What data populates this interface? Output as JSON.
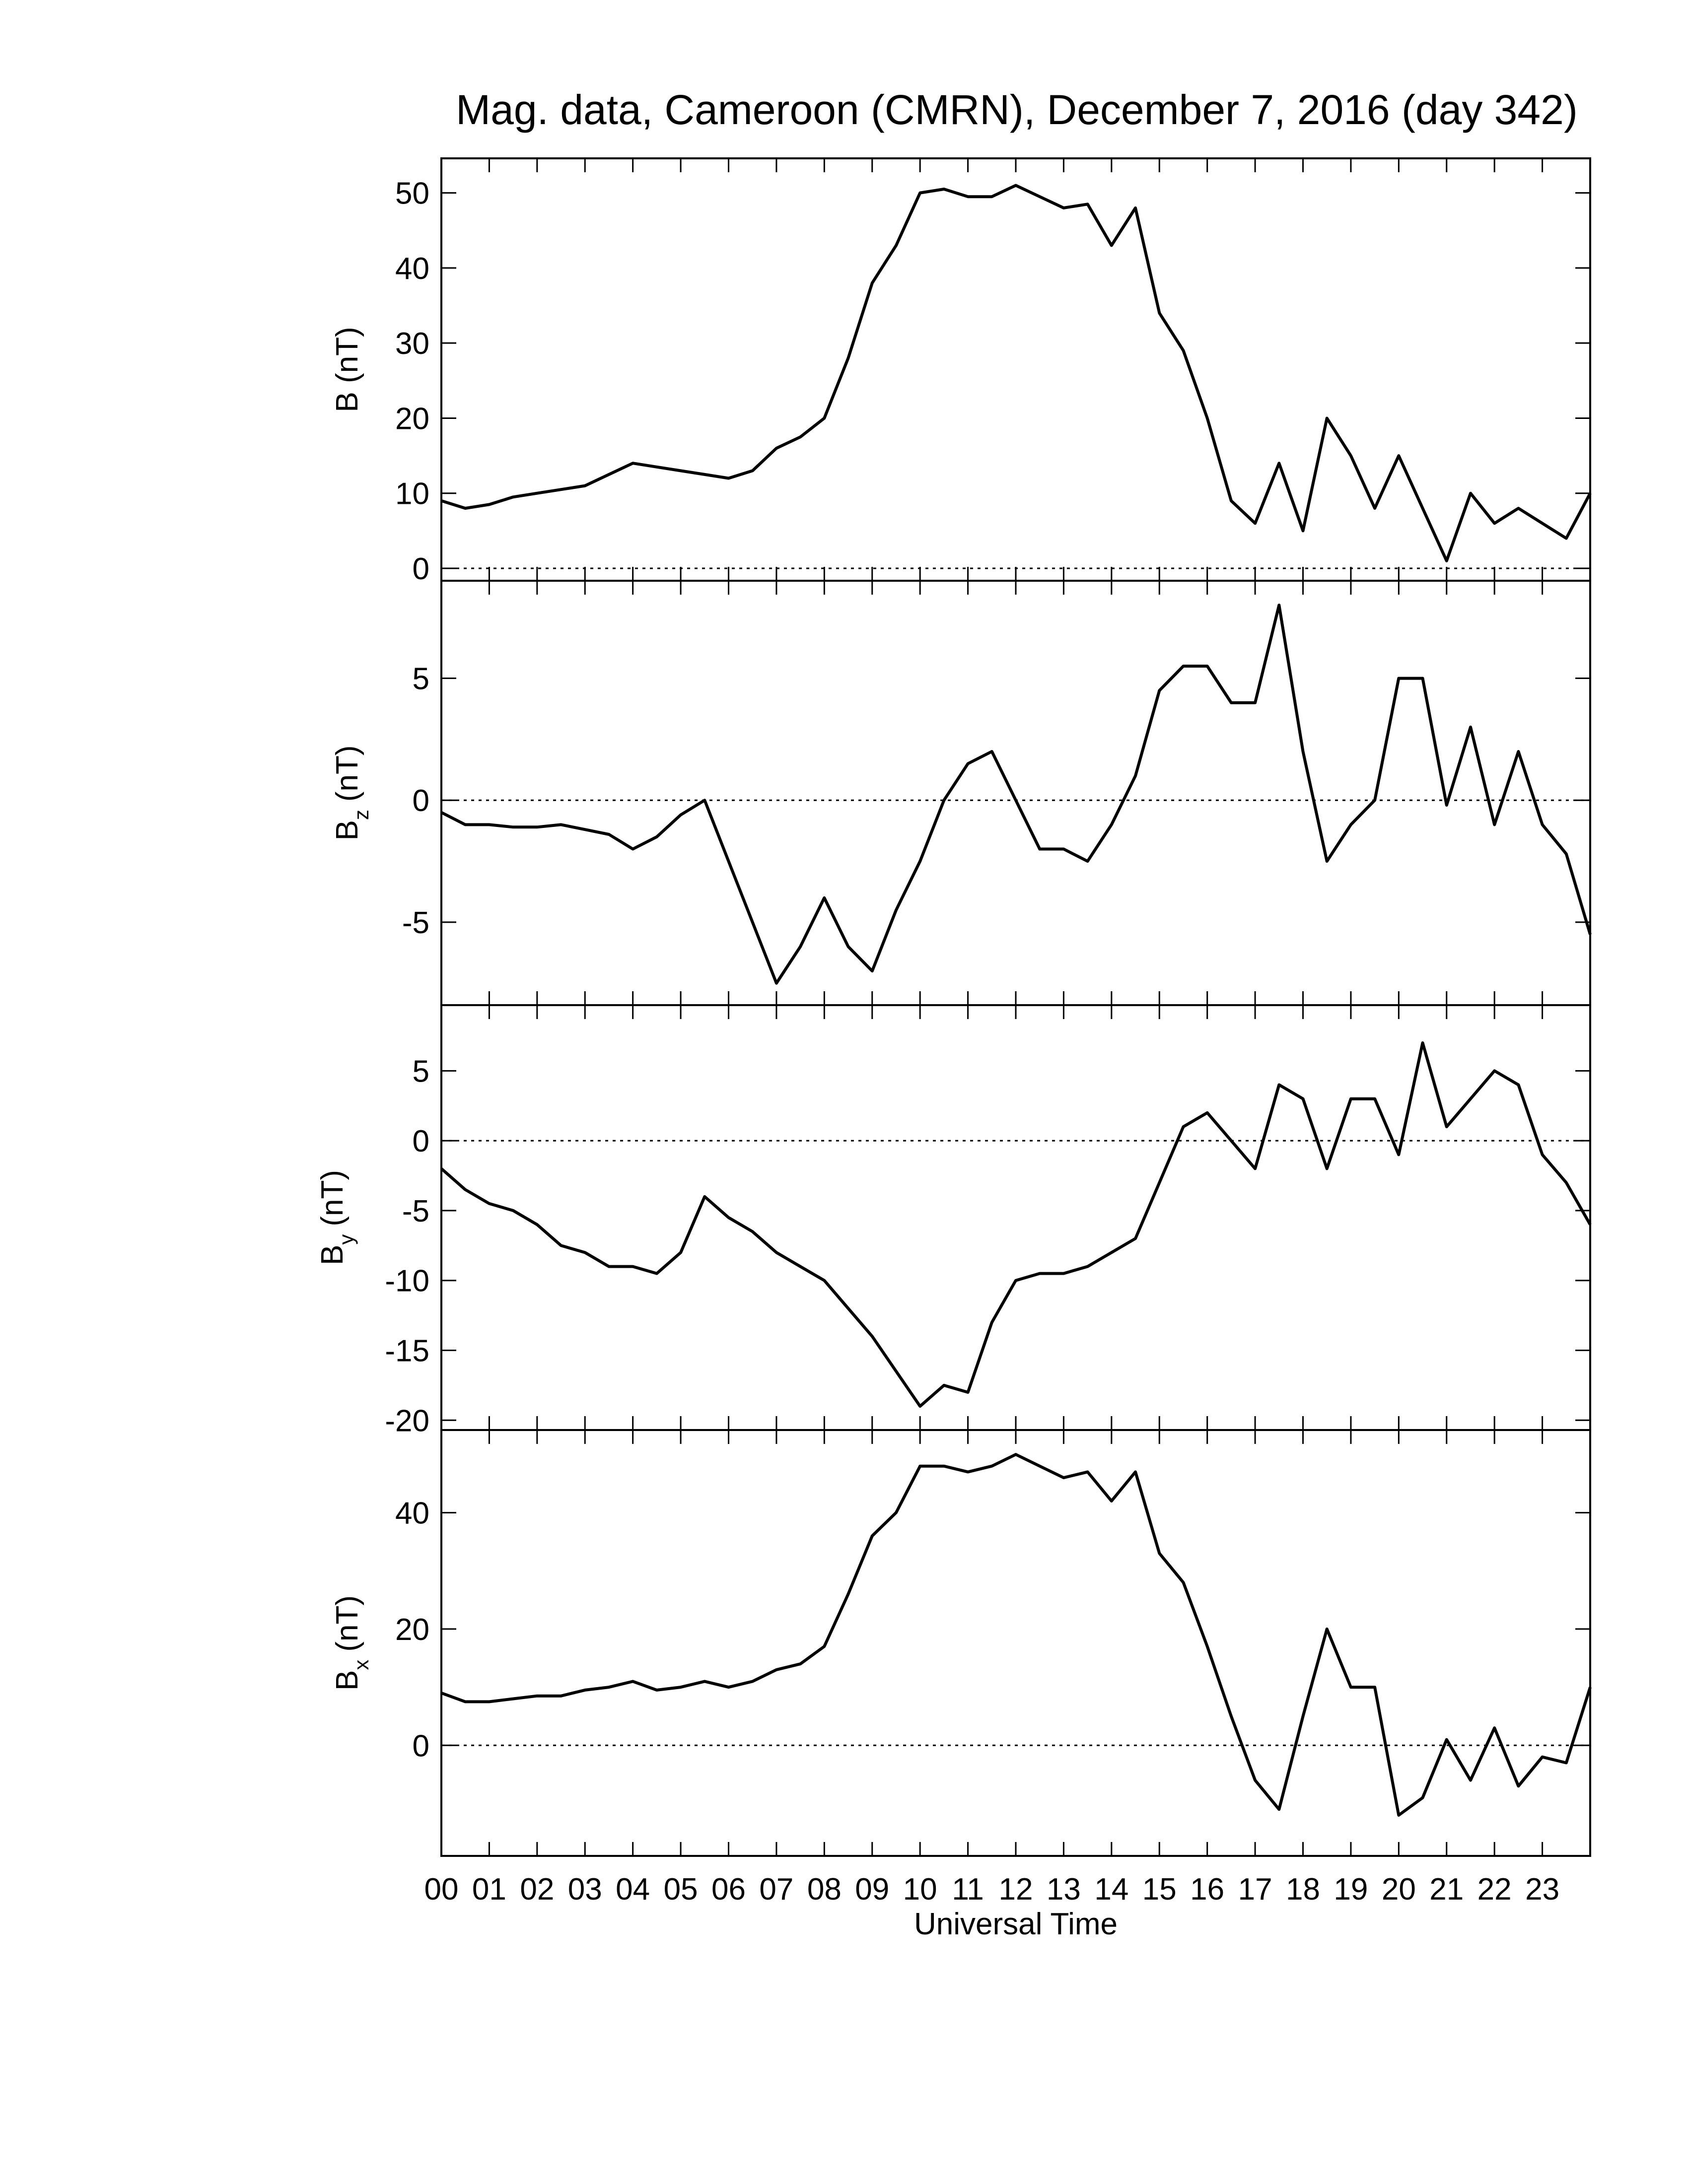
{
  "chart_data": [
    {
      "type": "line",
      "title": "Mag. data, Cameroon (CMRN), December 7, 2016 (day 342)",
      "ylabel": "B (nT)",
      "color": "#000000",
      "zero_line": true,
      "xlim": [
        0,
        24
      ],
      "ylim": [
        -1.65,
        54.6
      ],
      "yticks": [
        0,
        10,
        20,
        30,
        40,
        50
      ],
      "x": [
        0,
        0.5,
        1,
        1.5,
        2,
        2.5,
        3,
        3.5,
        4,
        4.5,
        5,
        5.5,
        6,
        6.5,
        7,
        7.5,
        8,
        8.5,
        9,
        9.5,
        10,
        10.5,
        11,
        11.5,
        12,
        12.5,
        13,
        13.5,
        14,
        14.5,
        15,
        15.5,
        16,
        16.5,
        17,
        17.5,
        18,
        18.5,
        19,
        19.5,
        20,
        20.5,
        21,
        21.5,
        22,
        22.5,
        23,
        23.5,
        24
      ],
      "values": [
        9,
        8,
        8.5,
        9.5,
        10,
        10.5,
        11,
        12.5,
        14,
        13.5,
        13,
        12.5,
        12,
        13,
        16,
        17.5,
        20,
        28,
        38,
        43,
        50,
        50.5,
        49.5,
        49.5,
        51,
        49.5,
        48,
        48.5,
        43,
        48,
        34,
        29,
        20,
        9,
        6,
        14,
        5,
        20,
        15,
        8,
        15,
        8,
        1,
        10,
        6,
        8,
        6,
        4,
        10
      ]
    },
    {
      "type": "line",
      "ylabel": {
        "text": "B",
        "sub": "z",
        "unit": "(nT)"
      },
      "color": "#000000",
      "zero_line": true,
      "xlim": [
        0,
        24
      ],
      "ylim": [
        -8.4,
        9.0
      ],
      "yticks": [
        -5,
        0,
        5
      ],
      "x": [
        0,
        0.5,
        1,
        1.5,
        2,
        2.5,
        3,
        3.5,
        4,
        4.5,
        5,
        5.5,
        6,
        6.5,
        7,
        7.5,
        8,
        8.5,
        9,
        9.5,
        10,
        10.5,
        11,
        11.5,
        12,
        12.5,
        13,
        13.5,
        14,
        14.5,
        15,
        15.5,
        16,
        16.5,
        17,
        17.5,
        18,
        18.5,
        19,
        19.5,
        20,
        20.5,
        21,
        21.5,
        22,
        22.5,
        23,
        23.5,
        24
      ],
      "values": [
        -0.5,
        -1,
        -1,
        -1.1,
        -1.1,
        -1,
        -1.2,
        -1.4,
        -2,
        -1.5,
        -0.6,
        0,
        -2.5,
        -5,
        -7.5,
        -6,
        -4,
        -6,
        -7,
        -4.5,
        -2.5,
        0,
        1.5,
        2,
        0,
        -2,
        -2,
        -2.5,
        -1,
        1,
        4.5,
        5.5,
        5.5,
        4,
        4,
        8,
        2,
        -2.5,
        -1,
        0,
        5,
        5,
        -0.2,
        3,
        -1,
        2,
        -1,
        -2.2,
        -5.5
      ]
    },
    {
      "type": "line",
      "ylabel": {
        "text": "B",
        "sub": "y",
        "unit": "(nT)"
      },
      "color": "#000000",
      "zero_line": true,
      "xlim": [
        0,
        24
      ],
      "ylim": [
        -20.7,
        9.7
      ],
      "yticks": [
        -20,
        -15,
        -10,
        -5,
        0,
        5
      ],
      "x": [
        0,
        0.5,
        1,
        1.5,
        2,
        2.5,
        3,
        3.5,
        4,
        4.5,
        5,
        5.5,
        6,
        6.5,
        7,
        7.5,
        8,
        8.5,
        9,
        9.5,
        10,
        10.5,
        11,
        11.5,
        12,
        12.5,
        13,
        13.5,
        14,
        14.5,
        15,
        15.5,
        16,
        16.5,
        17,
        17.5,
        18,
        18.5,
        19,
        19.5,
        20,
        20.5,
        21,
        21.5,
        22,
        22.5,
        23,
        23.5,
        24
      ],
      "values": [
        -2,
        -3.5,
        -4.5,
        -5,
        -6,
        -7.5,
        -8,
        -9,
        -9,
        -9.5,
        -8,
        -4,
        -5.5,
        -6.5,
        -8,
        -9,
        -10,
        -12,
        -14,
        -16.5,
        -19,
        -17.5,
        -18,
        -13,
        -10,
        -9.5,
        -9.5,
        -9,
        -8,
        -7,
        -3,
        1,
        2,
        0,
        -2,
        4,
        3,
        -2,
        3,
        3,
        -1,
        7,
        1,
        3,
        5,
        4,
        -1,
        -3,
        -6
      ]
    },
    {
      "type": "line",
      "ylabel": {
        "text": "B",
        "sub": "x",
        "unit": "(nT)"
      },
      "color": "#000000",
      "zero_line": true,
      "xlabel": "Universal Time",
      "xlim": [
        0,
        24
      ],
      "ylim": [
        -19,
        54.2
      ],
      "yticks": [
        0,
        20,
        40
      ],
      "xticks": [
        {
          "value": 0,
          "label": "00"
        },
        {
          "value": 1,
          "label": "01"
        },
        {
          "value": 2,
          "label": "02"
        },
        {
          "value": 3,
          "label": "03"
        },
        {
          "value": 4,
          "label": "04"
        },
        {
          "value": 5,
          "label": "05"
        },
        {
          "value": 6,
          "label": "06"
        },
        {
          "value": 7,
          "label": "07"
        },
        {
          "value": 8,
          "label": "08"
        },
        {
          "value": 9,
          "label": "09"
        },
        10,
        11,
        12,
        13,
        14,
        15,
        16,
        17,
        18,
        19,
        20,
        21,
        22,
        23
      ],
      "x": [
        0,
        0.5,
        1,
        1.5,
        2,
        2.5,
        3,
        3.5,
        4,
        4.5,
        5,
        5.5,
        6,
        6.5,
        7,
        7.5,
        8,
        8.5,
        9,
        9.5,
        10,
        10.5,
        11,
        11.5,
        12,
        12.5,
        13,
        13.5,
        14,
        14.5,
        15,
        15.5,
        16,
        16.5,
        17,
        17.5,
        18,
        18.5,
        19,
        19.5,
        20,
        20.5,
        21,
        21.5,
        22,
        22.5,
        23,
        23.5,
        24
      ],
      "values": [
        9,
        7.5,
        7.5,
        8,
        8.5,
        8.5,
        9.5,
        10,
        11,
        9.5,
        10,
        11,
        10,
        11,
        13,
        14,
        17,
        26,
        36,
        40,
        48,
        48,
        47,
        48,
        50,
        48,
        46,
        47,
        42,
        47,
        33,
        28,
        17,
        5,
        -6,
        -11,
        5,
        20,
        10,
        10,
        -12,
        -9,
        1,
        -6,
        3,
        -7,
        -2,
        -3,
        10
      ]
    }
  ]
}
